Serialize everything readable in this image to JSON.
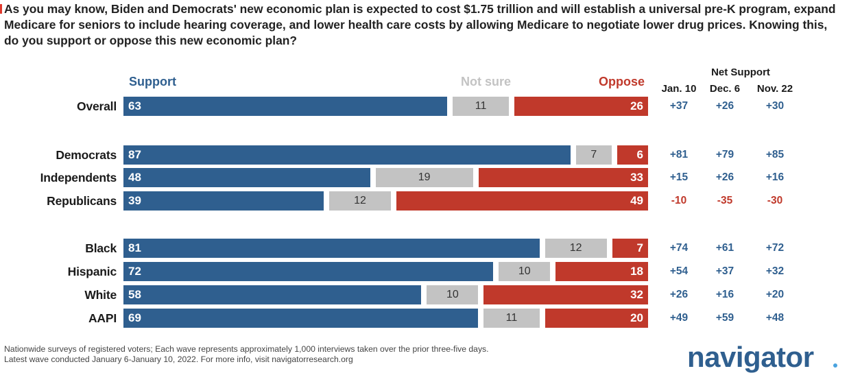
{
  "question": "As you may know, Biden and Democrats' new economic plan is expected to cost $1.75 trillion and will establish a universal pre-K program, expand Medicare for seniors to include hearing coverage, and lower health care costs by allowing Medicare to negotiate lower drug prices. Knowing this, do you support or oppose this new economic plan?",
  "colors": {
    "support": "#2f5f8f",
    "not_sure": "#c3c3c3",
    "oppose": "#c0392b",
    "net_positive": "#2f5f8f",
    "net_negative": "#c0392b",
    "accent": "#e03a2e",
    "logo": "#2f5f8f",
    "logo_dot": "#4aa3df"
  },
  "chart_data": {
    "type": "bar",
    "orientation": "horizontal-stacked",
    "legend": {
      "support": "Support",
      "not_sure": "Not sure",
      "oppose": "Oppose"
    },
    "net_support": {
      "title": "Net Support",
      "columns": [
        "Jan. 10",
        "Dec. 6",
        "Nov. 22"
      ]
    },
    "groups": [
      {
        "rows": [
          {
            "label": "Overall",
            "support": 63,
            "not_sure": 11,
            "oppose": 26,
            "net": [
              "+37",
              "+26",
              "+30"
            ]
          }
        ]
      },
      {
        "rows": [
          {
            "label": "Democrats",
            "support": 87,
            "not_sure": 7,
            "oppose": 6,
            "net": [
              "+81",
              "+79",
              "+85"
            ]
          },
          {
            "label": "Independents",
            "support": 48,
            "not_sure": 19,
            "oppose": 33,
            "net": [
              "+15",
              "+26",
              "+16"
            ]
          },
          {
            "label": "Republicans",
            "support": 39,
            "not_sure": 12,
            "oppose": 49,
            "net": [
              "-10",
              "-35",
              "-30"
            ]
          }
        ]
      },
      {
        "rows": [
          {
            "label": "Black",
            "support": 81,
            "not_sure": 12,
            "oppose": 7,
            "net": [
              "+74",
              "+61",
              "+72"
            ]
          },
          {
            "label": "Hispanic",
            "support": 72,
            "not_sure": 10,
            "oppose": 18,
            "net": [
              "+54",
              "+37",
              "+32"
            ]
          },
          {
            "label": "White",
            "support": 58,
            "not_sure": 10,
            "oppose": 32,
            "net": [
              "+26",
              "+16",
              "+20"
            ]
          },
          {
            "label": "AAPI",
            "support": 69,
            "not_sure": 11,
            "oppose": 20,
            "net": [
              "+49",
              "+59",
              "+48"
            ]
          }
        ]
      }
    ]
  },
  "footnote": {
    "line1": "Nationwide surveys of registered voters; Each wave represents approximately 1,000 interviews taken over the prior three-five days.",
    "line2": "Latest wave conducted January 6-January 10, 2022. For more info, visit navigatorresearch.org"
  },
  "logo_text": "navigator"
}
